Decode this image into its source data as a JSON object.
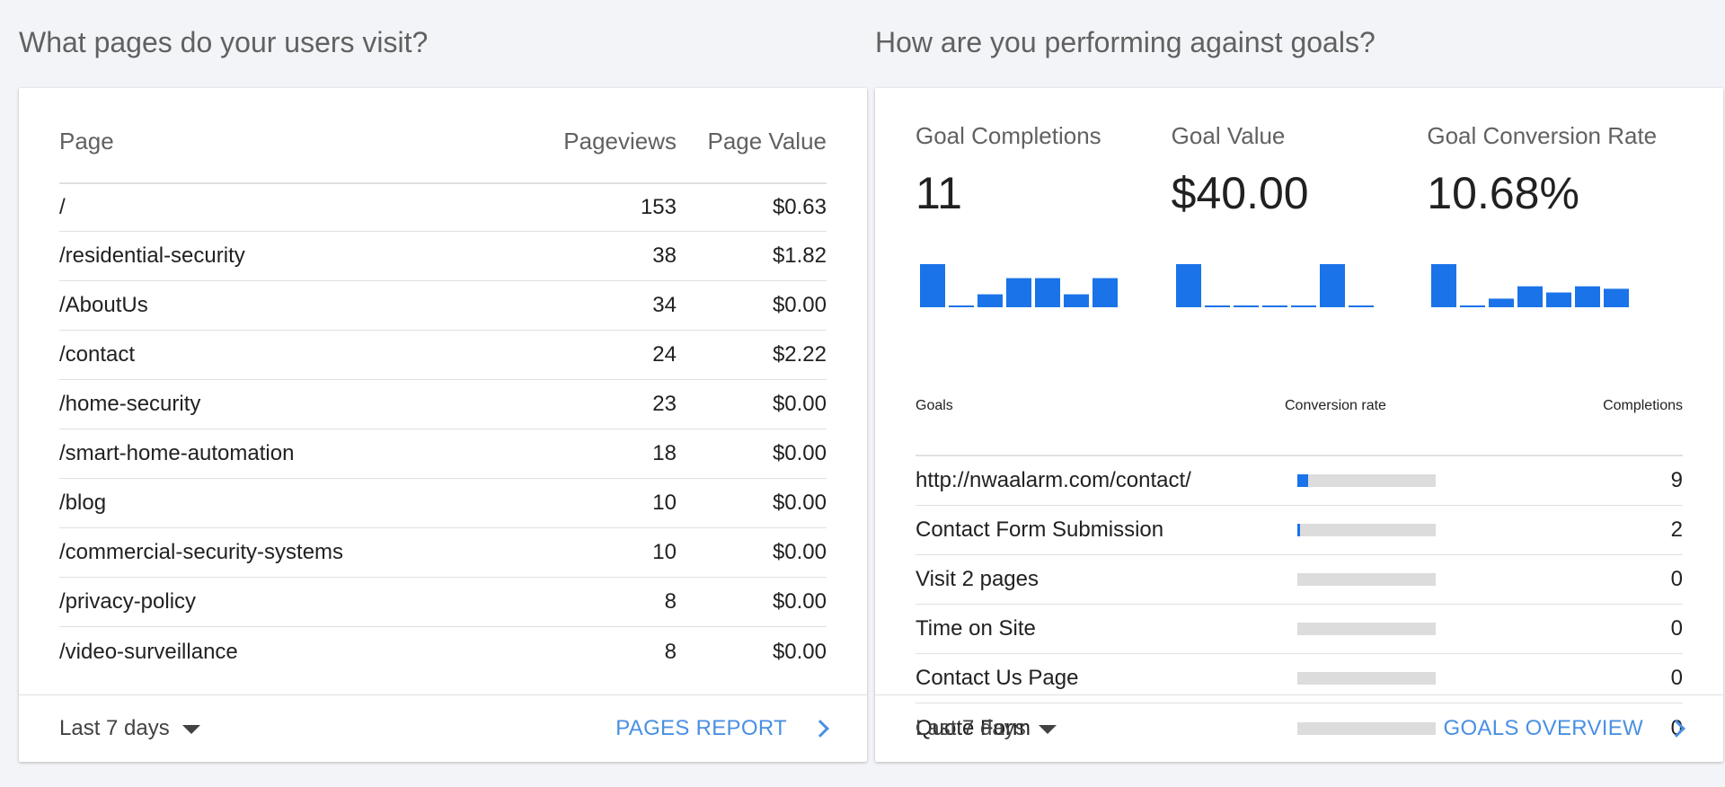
{
  "pages": {
    "title": "What pages do your users visit?",
    "columns": {
      "page": "Page",
      "pageviews": "Pageviews",
      "page_value": "Page Value"
    },
    "rows": [
      {
        "page": "/",
        "pageviews": "153",
        "value": "$0.63"
      },
      {
        "page": "/residential-security",
        "pageviews": "38",
        "value": "$1.82"
      },
      {
        "page": "/AboutUs",
        "pageviews": "34",
        "value": "$0.00"
      },
      {
        "page": "/contact",
        "pageviews": "24",
        "value": "$2.22"
      },
      {
        "page": "/home-security",
        "pageviews": "23",
        "value": "$0.00"
      },
      {
        "page": "/smart-home-automation",
        "pageviews": "18",
        "value": "$0.00"
      },
      {
        "page": "/blog",
        "pageviews": "10",
        "value": "$0.00"
      },
      {
        "page": "/commercial-security-systems",
        "pageviews": "10",
        "value": "$0.00"
      },
      {
        "page": "/privacy-policy",
        "pageviews": "8",
        "value": "$0.00"
      },
      {
        "page": "/video-surveillance",
        "pageviews": "8",
        "value": "$0.00"
      }
    ],
    "footer": {
      "range": "Last 7 days",
      "link": "PAGES REPORT"
    }
  },
  "goals": {
    "title": "How are you performing against goals?",
    "metrics": [
      {
        "label": "Goal Completions",
        "value": "11",
        "spark": [
          4,
          0,
          1.2,
          2.7,
          2.7,
          1.2,
          2.7
        ]
      },
      {
        "label": "Goal Value",
        "value": "$40.00",
        "spark": [
          4,
          0,
          0,
          0,
          0,
          4,
          0
        ]
      },
      {
        "label": "Goal Conversion Rate",
        "value": "10.68%",
        "spark": [
          3.5,
          0,
          0.7,
          1.7,
          1.2,
          1.7,
          1.5
        ]
      }
    ],
    "columns": {
      "goal": "Goals",
      "rate": "Conversion rate",
      "completions": "Completions"
    },
    "rows": [
      {
        "name": "http://nwaalarm.com/contact/",
        "rate_fraction": 0.08,
        "completions": "9"
      },
      {
        "name": "Contact Form Submission",
        "rate_fraction": 0.02,
        "completions": "2"
      },
      {
        "name": "Visit 2 pages",
        "rate_fraction": 0,
        "completions": "0"
      },
      {
        "name": "Time on Site",
        "rate_fraction": 0,
        "completions": "0"
      },
      {
        "name": "Contact Us Page",
        "rate_fraction": 0,
        "completions": "0"
      },
      {
        "name": "Quote Form",
        "rate_fraction": 0,
        "completions": "0"
      }
    ],
    "footer": {
      "range": "Last 7 days",
      "link": "GOALS OVERVIEW"
    }
  },
  "colors": {
    "accent": "#1a73e8",
    "link": "#4a90e2",
    "track": "#dcdcdc"
  },
  "icons": {
    "caret": "caret-down-icon",
    "chevron": "chevron-right-icon"
  }
}
